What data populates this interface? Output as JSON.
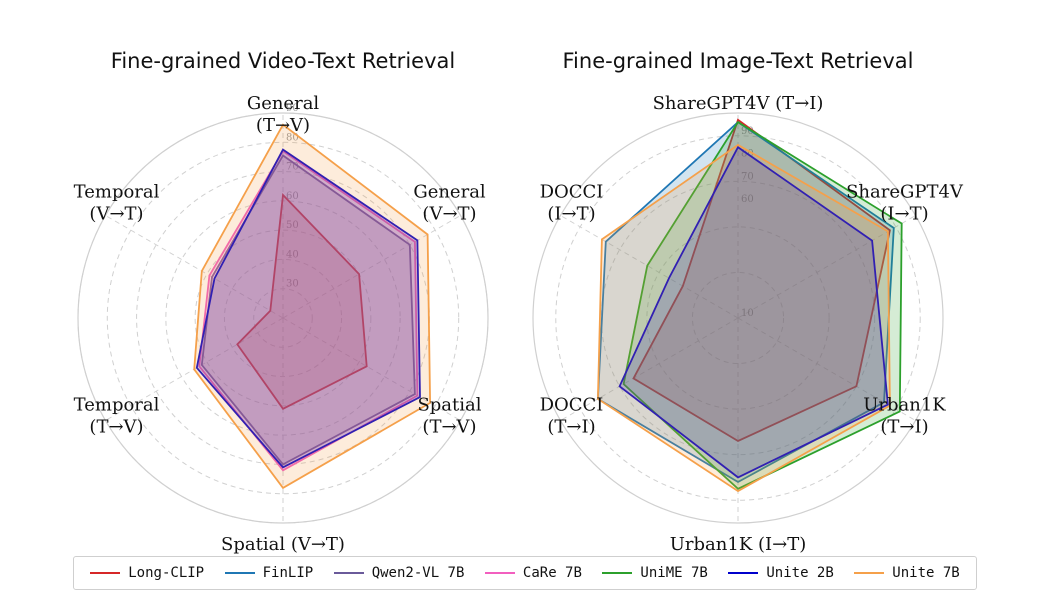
{
  "series_styles": [
    {
      "name": "Long-CLIP",
      "color": "#d62728"
    },
    {
      "name": "FinLIP",
      "color": "#1f77b4"
    },
    {
      "name": "Qwen2-VL 7B",
      "color": "#6a5a9a"
    },
    {
      "name": "CaRe 7B",
      "color": "#f25fbf"
    },
    {
      "name": "UniME 7B",
      "color": "#2ca02c"
    },
    {
      "name": "Unite 2B",
      "color": "#0000cc"
    },
    {
      "name": "Unite 7B",
      "color": "#f5a04a"
    }
  ],
  "chart_data": [
    {
      "type": "radar",
      "title": "Fine-grained Video-Text Retrieval",
      "axes": [
        [
          "General",
          "(T→V)"
        ],
        [
          "General",
          "(V→T)"
        ],
        [
          "Spatial",
          "(T→V)"
        ],
        [
          "Spatial (V→T)"
        ],
        [
          "Temporal",
          "(T→V)"
        ],
        [
          "Temporal",
          "(V→T)"
        ]
      ],
      "axis_label_layout": [
        "inline",
        "stack",
        "stack",
        "inline",
        "stack",
        "stack"
      ],
      "ticks": [
        30,
        40,
        50,
        60,
        70,
        80,
        90
      ],
      "rlim": [
        20,
        90
      ],
      "grid": true,
      "series": [
        {
          "name": "Long-CLIP",
          "values": [
            62,
            50,
            53,
            51,
            38,
            25
          ]
        },
        {
          "name": "Qwen2-VL 7B",
          "values": [
            75.5,
            70,
            72,
            70,
            52,
            48
          ]
        },
        {
          "name": "CaRe 7B",
          "values": [
            77,
            72,
            73,
            72,
            53,
            49
          ]
        },
        {
          "name": "Unite 2B",
          "values": [
            77.5,
            73,
            74,
            71,
            54,
            47
          ]
        },
        {
          "name": "Unite 7B",
          "values": [
            86,
            77,
            78,
            78,
            55,
            52
          ]
        }
      ]
    },
    {
      "type": "radar",
      "title": "Fine-grained Image-Text Retrieval",
      "axes": [
        [
          "ShareGPT4V (T→I)"
        ],
        [
          "ShareGPT4V",
          "(I→T)"
        ],
        [
          "Urban1K",
          "(T→I)"
        ],
        [
          "Urban1K (I→T)"
        ],
        [
          "DOCCI",
          "(T→I)"
        ],
        [
          "DOCCI",
          "(I→T)"
        ]
      ],
      "axis_label_layout": [
        "inline",
        "stack",
        "stack",
        "inline",
        "stack",
        "stack"
      ],
      "ticks": [
        10,
        30,
        50,
        70,
        90
      ],
      "tick_labels_visible": [
        10,
        60,
        70,
        80,
        90
      ],
      "rlim": [
        10,
        100
      ],
      "grid": true,
      "series": [
        {
          "name": "Long-CLIP",
          "values": [
            97,
            87,
            70,
            64,
            63,
            38
          ]
        },
        {
          "name": "FinLIP",
          "values": [
            96,
            89,
            84,
            82,
            81,
            77
          ]
        },
        {
          "name": "UniME 7B",
          "values": [
            96,
            93,
            92,
            85,
            68,
            56
          ]
        },
        {
          "name": "Unite 2B",
          "values": [
            85,
            78,
            86,
            80,
            70,
            45
          ]
        },
        {
          "name": "Unite 7B",
          "values": [
            86,
            86,
            87,
            86,
            81,
            79
          ]
        }
      ]
    }
  ]
}
